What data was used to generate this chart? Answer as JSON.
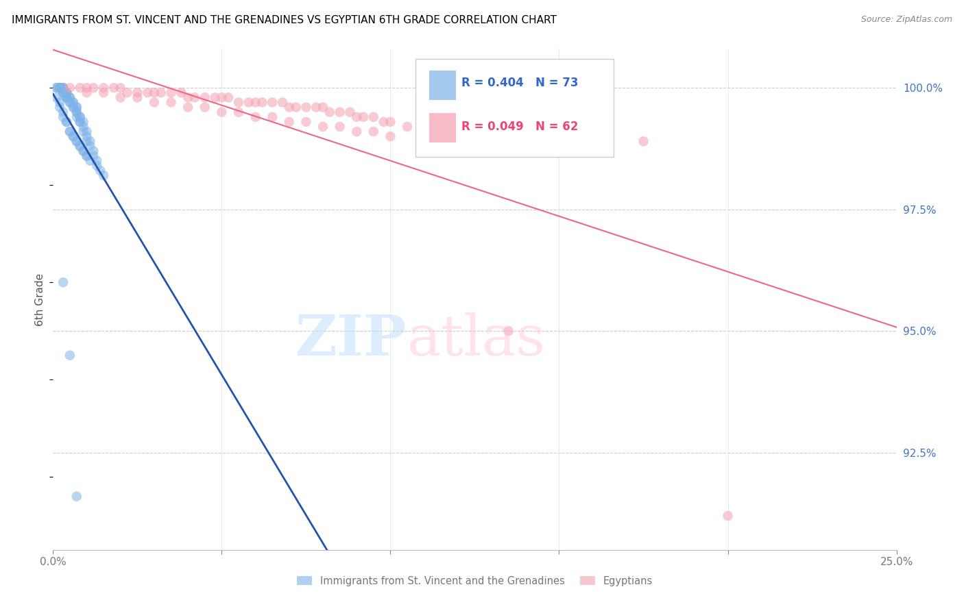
{
  "title": "IMMIGRANTS FROM ST. VINCENT AND THE GRENADINES VS EGYPTIAN 6TH GRADE CORRELATION CHART",
  "source": "Source: ZipAtlas.com",
  "ylabel": "6th Grade",
  "ylabel_ticks": [
    "100.0%",
    "97.5%",
    "95.0%",
    "92.5%"
  ],
  "ylabel_tick_vals": [
    1.0,
    0.975,
    0.95,
    0.925
  ],
  "xlim": [
    0.0,
    0.25
  ],
  "ylim": [
    0.905,
    1.008
  ],
  "legend_blue_r": "R = 0.404",
  "legend_blue_n": "N = 73",
  "legend_pink_r": "R = 0.049",
  "legend_pink_n": "N = 62",
  "legend_label_blue": "Immigrants from St. Vincent and the Grenadines",
  "legend_label_pink": "Egyptians",
  "blue_color": "#7EB3E8",
  "pink_color": "#F4A0B0",
  "blue_line_color": "#2255AA",
  "pink_line_color": "#EE6688",
  "blue_scatter_x": [
    0.001,
    0.001,
    0.002,
    0.002,
    0.002,
    0.002,
    0.002,
    0.003,
    0.003,
    0.003,
    0.003,
    0.003,
    0.003,
    0.004,
    0.004,
    0.004,
    0.004,
    0.004,
    0.004,
    0.005,
    0.005,
    0.005,
    0.005,
    0.006,
    0.006,
    0.006,
    0.006,
    0.007,
    0.007,
    0.007,
    0.007,
    0.007,
    0.008,
    0.008,
    0.008,
    0.008,
    0.009,
    0.009,
    0.009,
    0.01,
    0.01,
    0.01,
    0.011,
    0.011,
    0.012,
    0.012,
    0.013,
    0.013,
    0.014,
    0.015,
    0.001,
    0.002,
    0.003,
    0.004,
    0.005,
    0.006,
    0.007,
    0.008,
    0.009,
    0.01,
    0.002,
    0.003,
    0.004,
    0.005,
    0.006,
    0.007,
    0.008,
    0.009,
    0.01,
    0.011,
    0.003,
    0.005,
    0.007
  ],
  "blue_scatter_y": [
    1.0,
    1.0,
    1.0,
    1.0,
    1.0,
    1.0,
    1.0,
    1.0,
    1.0,
    1.0,
    0.999,
    0.999,
    0.999,
    0.999,
    0.999,
    0.999,
    0.998,
    0.998,
    0.998,
    0.998,
    0.998,
    0.997,
    0.997,
    0.997,
    0.997,
    0.996,
    0.996,
    0.996,
    0.996,
    0.995,
    0.995,
    0.994,
    0.994,
    0.994,
    0.993,
    0.993,
    0.993,
    0.992,
    0.991,
    0.991,
    0.99,
    0.989,
    0.989,
    0.988,
    0.987,
    0.986,
    0.985,
    0.984,
    0.983,
    0.982,
    0.998,
    0.996,
    0.994,
    0.993,
    0.991,
    0.99,
    0.989,
    0.988,
    0.987,
    0.986,
    0.997,
    0.995,
    0.993,
    0.991,
    0.99,
    0.989,
    0.988,
    0.987,
    0.986,
    0.985,
    0.96,
    0.945,
    0.916
  ],
  "pink_scatter_x": [
    0.005,
    0.008,
    0.01,
    0.012,
    0.015,
    0.018,
    0.02,
    0.022,
    0.025,
    0.028,
    0.03,
    0.032,
    0.035,
    0.038,
    0.04,
    0.042,
    0.045,
    0.048,
    0.05,
    0.052,
    0.055,
    0.058,
    0.06,
    0.062,
    0.065,
    0.068,
    0.07,
    0.072,
    0.075,
    0.078,
    0.08,
    0.082,
    0.085,
    0.088,
    0.09,
    0.092,
    0.095,
    0.098,
    0.1,
    0.105,
    0.01,
    0.02,
    0.03,
    0.04,
    0.05,
    0.06,
    0.07,
    0.08,
    0.09,
    0.1,
    0.015,
    0.025,
    0.035,
    0.045,
    0.055,
    0.065,
    0.075,
    0.085,
    0.095,
    0.175,
    0.135,
    0.2
  ],
  "pink_scatter_y": [
    1.0,
    1.0,
    1.0,
    1.0,
    1.0,
    1.0,
    1.0,
    0.999,
    0.999,
    0.999,
    0.999,
    0.999,
    0.999,
    0.999,
    0.998,
    0.998,
    0.998,
    0.998,
    0.998,
    0.998,
    0.997,
    0.997,
    0.997,
    0.997,
    0.997,
    0.997,
    0.996,
    0.996,
    0.996,
    0.996,
    0.996,
    0.995,
    0.995,
    0.995,
    0.994,
    0.994,
    0.994,
    0.993,
    0.993,
    0.992,
    0.999,
    0.998,
    0.997,
    0.996,
    0.995,
    0.994,
    0.993,
    0.992,
    0.991,
    0.99,
    0.999,
    0.998,
    0.997,
    0.996,
    0.995,
    0.994,
    0.993,
    0.992,
    0.991,
    0.989,
    0.95,
    0.912
  ]
}
